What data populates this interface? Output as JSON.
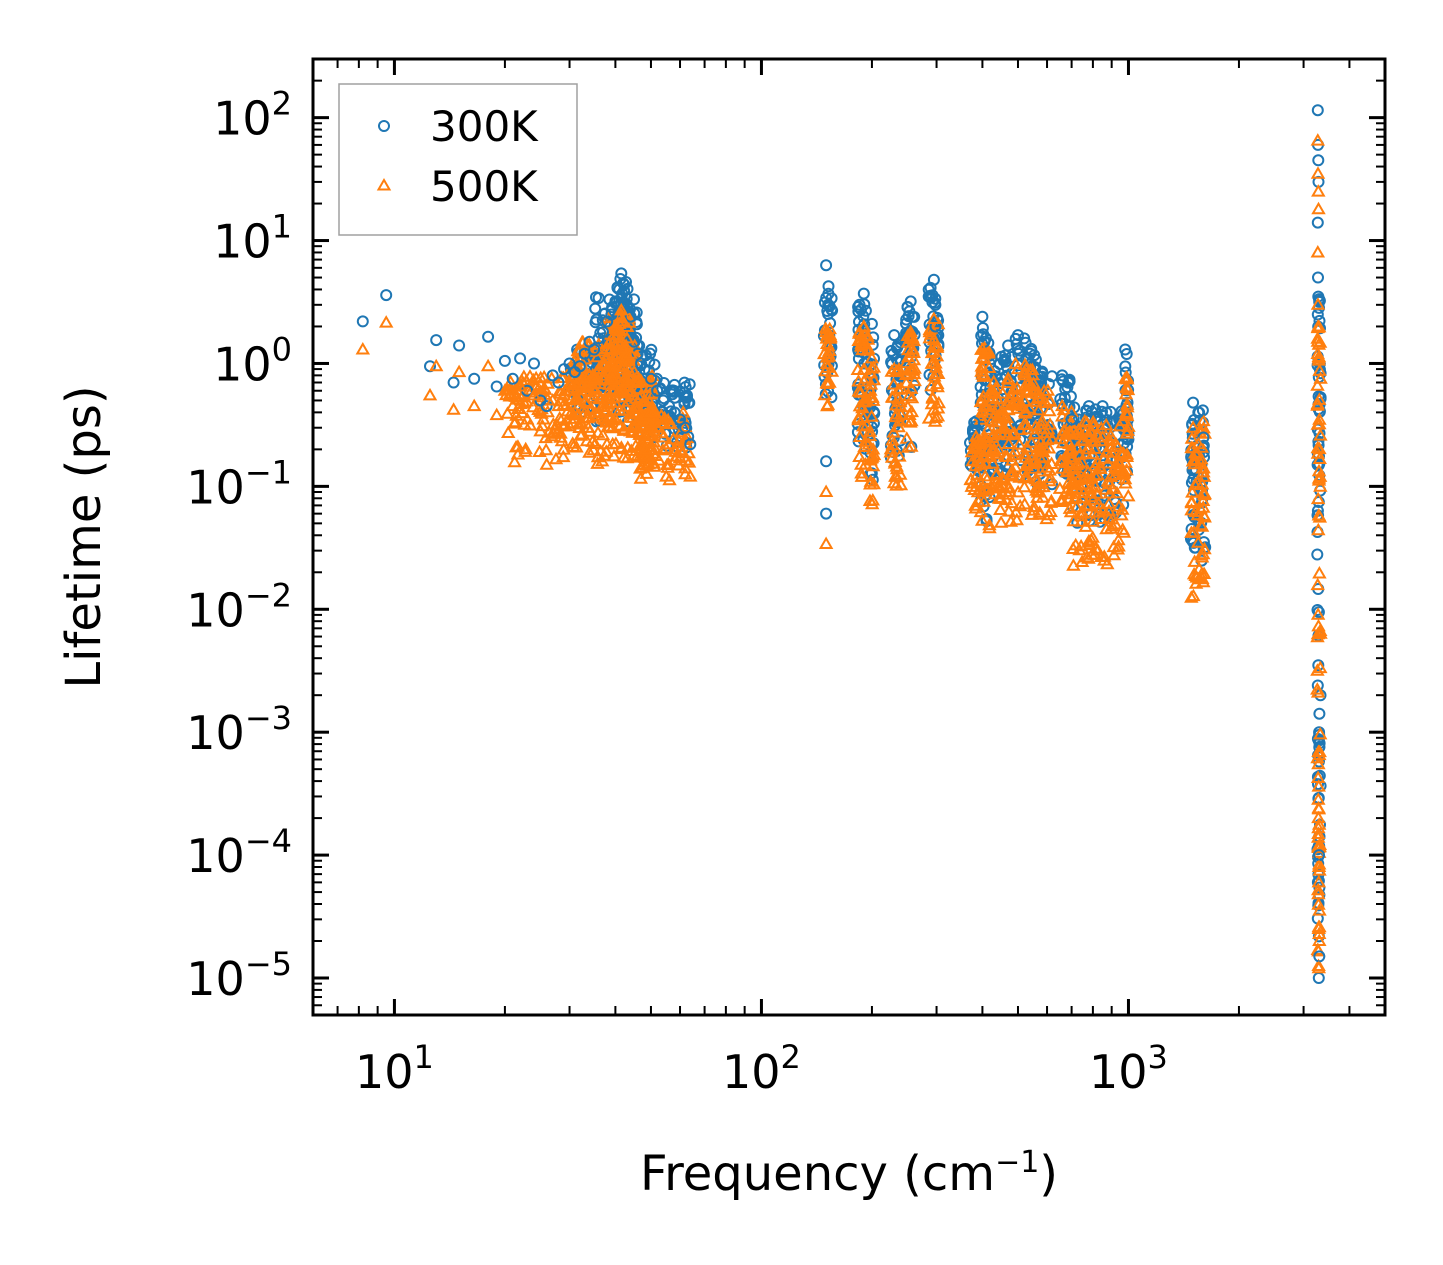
{
  "chart_data": {
    "type": "scatter",
    "xscale": "log",
    "yscale": "log",
    "xlabel": "Frequency (cm",
    "xlabel_sup": "−1",
    "xlabel_end": ")",
    "ylabel": "Lifetime (ps)",
    "xlim": [
      6,
      5000
    ],
    "ylim": [
      5e-06,
      300
    ],
    "x_ticks": [
      {
        "value": 10,
        "base": "10",
        "exp": "1"
      },
      {
        "value": 100,
        "base": "10",
        "exp": "2"
      },
      {
        "value": 1000,
        "base": "10",
        "exp": "3"
      }
    ],
    "y_ticks": [
      {
        "value": 100,
        "base": "10",
        "exp": "2"
      },
      {
        "value": 10,
        "base": "10",
        "exp": "1"
      },
      {
        "value": 1,
        "base": "10",
        "exp": "0"
      },
      {
        "value": 0.1,
        "base": "10",
        "exp": "−1"
      },
      {
        "value": 0.01,
        "base": "10",
        "exp": "−2"
      },
      {
        "value": 0.001,
        "base": "10",
        "exp": "−3"
      },
      {
        "value": 0.0001,
        "base": "10",
        "exp": "−4"
      },
      {
        "value": 1e-05,
        "base": "10",
        "exp": "−5"
      }
    ],
    "legend": {
      "position": "top-left"
    },
    "series": [
      {
        "name": "300K",
        "marker": "circle",
        "color": "#1f77b4",
        "points": [
          [
            8.2,
            2.2
          ],
          [
            9.5,
            3.6
          ],
          [
            12.5,
            0.95
          ],
          [
            13,
            1.55
          ],
          [
            14.5,
            0.7
          ],
          [
            15,
            1.4
          ],
          [
            16.5,
            0.75
          ],
          [
            18,
            1.65
          ],
          [
            19,
            0.65
          ],
          [
            20,
            1.05
          ],
          [
            21,
            0.75
          ],
          [
            22,
            1.1
          ],
          [
            23,
            0.6
          ],
          [
            24,
            1.0
          ],
          [
            25,
            0.5
          ],
          [
            26,
            0.45
          ],
          [
            27,
            0.8
          ],
          [
            28,
            0.7
          ],
          [
            29,
            0.9
          ],
          [
            30,
            1.0
          ],
          [
            31,
            0.85
          ],
          [
            32,
            0.95
          ],
          [
            33,
            1.2
          ],
          [
            34,
            1.5
          ],
          [
            35,
            1.3
          ],
          [
            36,
            1.6
          ],
          [
            37,
            1.8
          ],
          [
            38,
            2.2
          ],
          [
            39,
            2.5
          ],
          [
            40,
            3.2
          ],
          [
            41,
            4.0
          ],
          [
            41.5,
            5.4
          ],
          [
            42,
            4.5
          ],
          [
            43,
            3.0
          ],
          [
            44,
            2.4
          ],
          [
            45,
            1.5
          ],
          [
            46,
            1.2
          ],
          [
            47,
            1.0
          ],
          [
            48,
            0.9
          ],
          [
            50,
            0.75
          ],
          [
            52,
            0.6
          ],
          [
            54,
            0.5
          ],
          [
            56,
            0.45
          ],
          [
            58,
            0.4
          ],
          [
            60,
            0.35
          ],
          [
            62,
            0.3
          ],
          [
            64,
            0.22
          ],
          [
            150,
            6.3
          ],
          [
            150,
            0.16
          ],
          [
            150,
            0.06
          ],
          [
            152,
            3.0
          ],
          [
            185,
            3.0
          ],
          [
            190,
            3.7
          ],
          [
            200,
            2.1
          ],
          [
            230,
            1.7
          ],
          [
            255,
            3.2
          ],
          [
            256,
            0.21
          ],
          [
            258,
            2.4
          ],
          [
            295,
            4.8
          ],
          [
            298,
            2.0
          ],
          [
            380,
            0.33
          ],
          [
            400,
            2.4
          ],
          [
            405,
            1.5
          ],
          [
            470,
            1.4
          ],
          [
            500,
            1.7
          ],
          [
            520,
            1.6
          ],
          [
            540,
            1.2
          ],
          [
            660,
            0.8
          ],
          [
            700,
            0.35
          ],
          [
            780,
            0.45
          ],
          [
            850,
            0.45
          ],
          [
            980,
            1.3
          ],
          [
            1500,
            0.48
          ],
          [
            1550,
            0.4
          ],
          [
            1600,
            0.25
          ],
          [
            3280,
            115
          ],
          [
            3285,
            60
          ],
          [
            3290,
            45
          ],
          [
            3295,
            30
          ],
          [
            3280,
            14
          ],
          [
            3285,
            5
          ],
          [
            3290,
            3.5
          ],
          [
            3280,
            2.5
          ],
          [
            3300,
            1e-05
          ],
          [
            3310,
            1.5e-05
          ],
          [
            3305,
            0.0001
          ]
        ]
      },
      {
        "name": "500K",
        "marker": "triangle",
        "color": "#ff7f0e",
        "points": [
          [
            8.2,
            1.3
          ],
          [
            9.5,
            2.15
          ],
          [
            12.5,
            0.55
          ],
          [
            13,
            0.95
          ],
          [
            14.5,
            0.42
          ],
          [
            15,
            0.85
          ],
          [
            16.5,
            0.45
          ],
          [
            18,
            0.95
          ],
          [
            19,
            0.38
          ],
          [
            20,
            0.6
          ],
          [
            21,
            0.45
          ],
          [
            22,
            0.65
          ],
          [
            23,
            0.35
          ],
          [
            24,
            0.55
          ],
          [
            25,
            0.28
          ],
          [
            26,
            0.15
          ],
          [
            27,
            0.5
          ],
          [
            28,
            0.45
          ],
          [
            29,
            0.55
          ],
          [
            30,
            0.6
          ],
          [
            31,
            0.5
          ],
          [
            32,
            0.55
          ],
          [
            33,
            0.7
          ],
          [
            34,
            0.8
          ],
          [
            35,
            0.75
          ],
          [
            36,
            0.9
          ],
          [
            37,
            1.0
          ],
          [
            38,
            1.1
          ],
          [
            39,
            1.3
          ],
          [
            40,
            1.6
          ],
          [
            41,
            2.1
          ],
          [
            41.5,
            2.7
          ],
          [
            42,
            2.2
          ],
          [
            43,
            1.6
          ],
          [
            44,
            1.2
          ],
          [
            45,
            0.85
          ],
          [
            46,
            0.7
          ],
          [
            47,
            0.55
          ],
          [
            48,
            0.5
          ],
          [
            50,
            0.4
          ],
          [
            52,
            0.3
          ],
          [
            54,
            0.25
          ],
          [
            56,
            0.22
          ],
          [
            58,
            0.2
          ],
          [
            60,
            0.17
          ],
          [
            62,
            0.14
          ],
          [
            64,
            0.12
          ],
          [
            150,
            1.8
          ],
          [
            150,
            0.09
          ],
          [
            150,
            0.034
          ],
          [
            152,
            1.2
          ],
          [
            185,
            1.8
          ],
          [
            190,
            2.0
          ],
          [
            200,
            1.1
          ],
          [
            230,
            0.9
          ],
          [
            255,
            1.8
          ],
          [
            256,
            0.21
          ],
          [
            258,
            1.3
          ],
          [
            295,
            2.3
          ],
          [
            298,
            1.0
          ],
          [
            380,
            0.2
          ],
          [
            400,
            1.3
          ],
          [
            405,
            0.8
          ],
          [
            470,
            0.75
          ],
          [
            500,
            0.9
          ],
          [
            520,
            0.85
          ],
          [
            540,
            0.65
          ],
          [
            660,
            0.45
          ],
          [
            700,
            0.2
          ],
          [
            780,
            0.25
          ],
          [
            850,
            0.25
          ],
          [
            980,
            0.75
          ],
          [
            1500,
            0.3
          ],
          [
            1550,
            0.22
          ],
          [
            1600,
            0.13
          ],
          [
            3280,
            65
          ],
          [
            3285,
            35
          ],
          [
            3290,
            25
          ],
          [
            3295,
            18
          ],
          [
            3280,
            8
          ],
          [
            3285,
            3
          ],
          [
            3290,
            2.0
          ],
          [
            3280,
            1.5
          ],
          [
            3300,
            1.2e-05
          ],
          [
            3310,
            2e-05
          ],
          [
            3305,
            8e-05
          ]
        ]
      }
    ],
    "bands": [
      {
        "series": "300K",
        "segments": [
          [
            30,
            52,
            0.33,
            1.4
          ],
          [
            35,
            46,
            0.6,
            3.5
          ],
          [
            40,
            44,
            1.2,
            5.0
          ],
          [
            46,
            64,
            0.2,
            0.7
          ],
          [
            148,
            156,
            0.5,
            4.5
          ],
          [
            183,
            196,
            0.2,
            3.5
          ],
          [
            197,
            203,
            0.1,
            1.8
          ],
          [
            225,
            240,
            0.14,
            1.6
          ],
          [
            247,
            262,
            0.5,
            3.0
          ],
          [
            285,
            305,
            0.6,
            4.5
          ],
          [
            370,
            395,
            0.12,
            0.35
          ],
          [
            395,
            420,
            0.05,
            2.2
          ],
          [
            420,
            470,
            0.12,
            1.2
          ],
          [
            470,
            560,
            0.12,
            1.6
          ],
          [
            560,
            620,
            0.1,
            1.0
          ],
          [
            650,
            700,
            0.12,
            0.75
          ],
          [
            700,
            980,
            0.05,
            0.45
          ],
          [
            980,
            1000,
            0.12,
            1.2
          ],
          [
            1480,
            1620,
            0.02,
            0.46
          ],
          [
            3270,
            3340,
            0.0001,
            3.4
          ],
          [
            3280,
            3320,
            2e-05,
            0.001
          ]
        ]
      },
      {
        "series": "500K",
        "segments": [
          [
            20,
            52,
            0.15,
            0.8
          ],
          [
            30,
            46,
            0.3,
            1.5
          ],
          [
            38,
            44,
            0.55,
            2.6
          ],
          [
            46,
            64,
            0.11,
            0.4
          ],
          [
            148,
            156,
            0.4,
            2.0
          ],
          [
            183,
            196,
            0.1,
            2.0
          ],
          [
            197,
            203,
            0.06,
            1.0
          ],
          [
            225,
            240,
            0.08,
            0.9
          ],
          [
            247,
            262,
            0.2,
            1.7
          ],
          [
            285,
            305,
            0.3,
            2.1
          ],
          [
            370,
            395,
            0.06,
            0.3
          ],
          [
            395,
            420,
            0.035,
            1.4
          ],
          [
            420,
            470,
            0.05,
            0.8
          ],
          [
            470,
            560,
            0.05,
            1.0
          ],
          [
            560,
            620,
            0.05,
            0.6
          ],
          [
            650,
            700,
            0.05,
            0.45
          ],
          [
            700,
            980,
            0.022,
            0.35
          ],
          [
            980,
            1000,
            0.08,
            0.85
          ],
          [
            1480,
            1620,
            0.012,
            0.35
          ],
          [
            3270,
            3340,
            7e-05,
            2.0
          ],
          [
            3280,
            3320,
            1.2e-05,
            0.0008
          ]
        ]
      }
    ]
  }
}
